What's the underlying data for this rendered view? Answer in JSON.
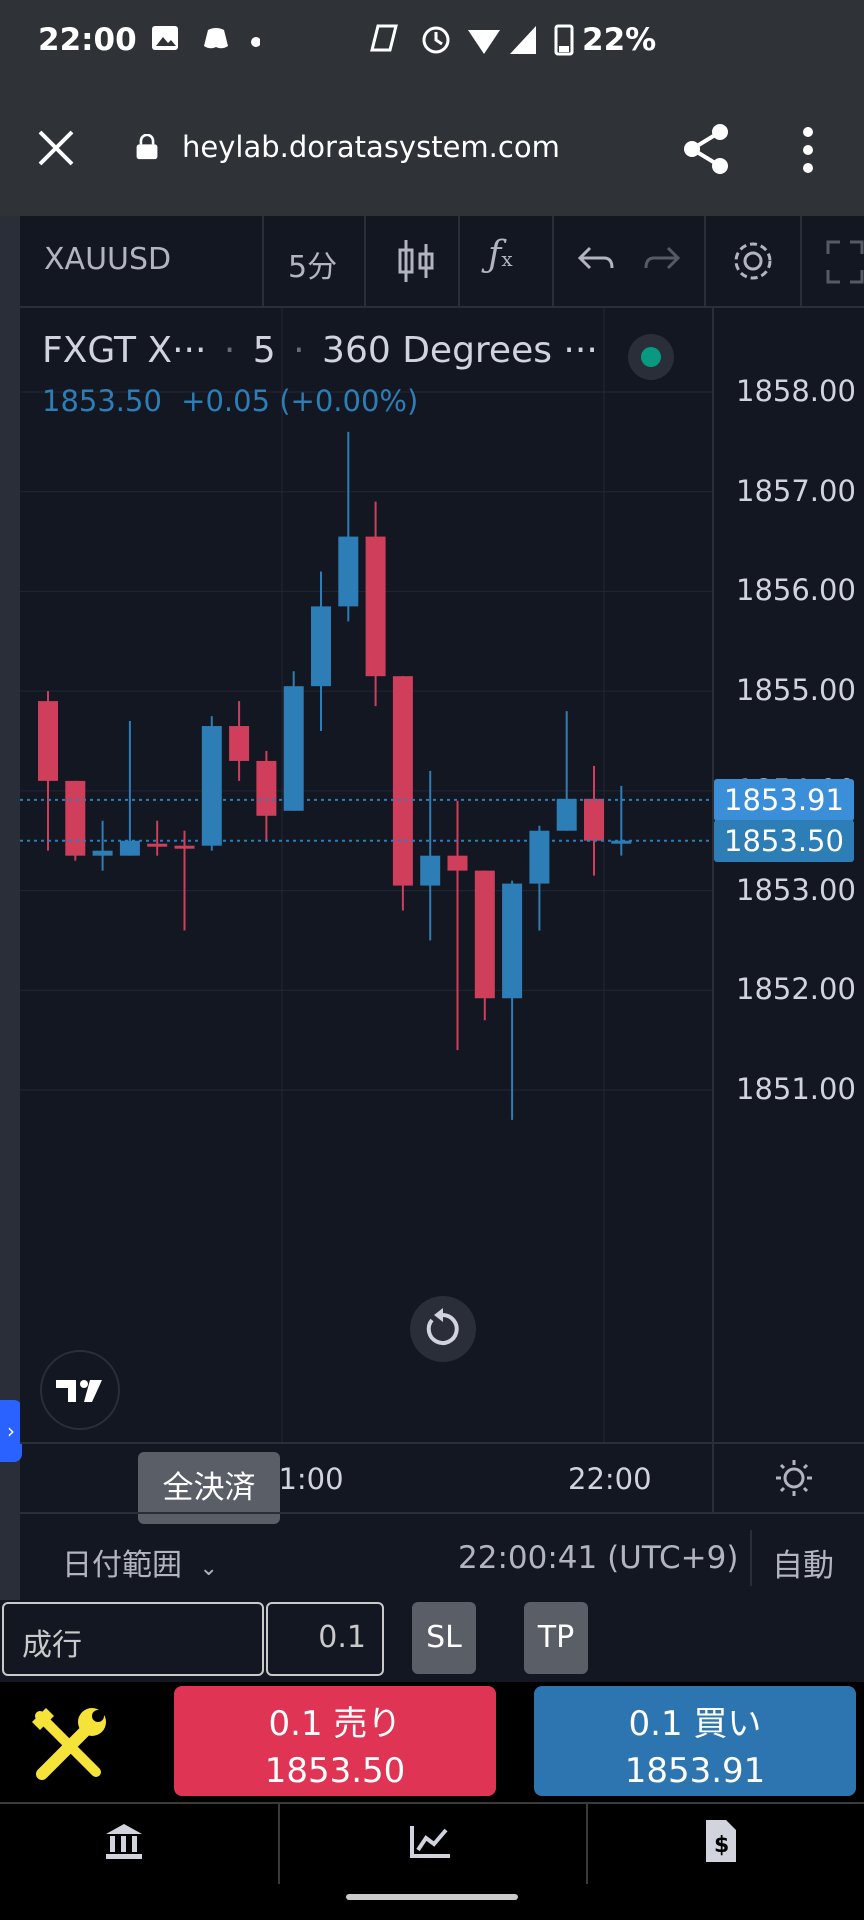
{
  "status_bar": {
    "time": "22:00",
    "battery": "22%"
  },
  "browser": {
    "url": "heylab.doratasystem.com"
  },
  "toolbar": {
    "symbol": "XAUUSD",
    "timeframe": "5分"
  },
  "legend": {
    "symbol_short": "FXGT X···",
    "interval": "5",
    "indicator": "360 Degrees ···",
    "last_price": "1853.50",
    "change": "+0.05 (+0.00%)"
  },
  "price_axis": {
    "labels": [
      "1858.00",
      "1857.00",
      "1856.00",
      "1855.00",
      "1853.00",
      "1852.00",
      "1851.00"
    ],
    "ask_label": "1853.91",
    "bid_label": "1853.50",
    "hidden_label": "1854.00"
  },
  "time_axis": {
    "labels": [
      "21:00",
      "22:00"
    ]
  },
  "tooltip": {
    "text": "全決済"
  },
  "date_bar": {
    "range_label": "日付範囲",
    "clock": "22:00:41 (UTC+9)",
    "auto_label": "自動"
  },
  "order_row": {
    "order_type": "成行",
    "quantity": "0.1",
    "sl_label": "SL",
    "tp_label": "TP"
  },
  "trade": {
    "sell_label": "0.1 売り",
    "sell_price": "1853.50",
    "buy_label": "0.1 買い",
    "buy_price": "1853.91",
    "sell_color": "#e03454",
    "buy_color": "#2d75b0"
  },
  "chart_data": {
    "type": "candlestick",
    "ylim": [
      1850.2,
      1858.4
    ],
    "up_color": "#2d7db6",
    "down_color": "#cf3f5b",
    "ask_line": 1853.91,
    "bid_line": 1853.5,
    "candles": [
      {
        "o": 1854.9,
        "h": 1855.0,
        "l": 1853.4,
        "c": 1854.1
      },
      {
        "o": 1854.1,
        "h": 1854.1,
        "l": 1853.3,
        "c": 1853.35
      },
      {
        "o": 1853.35,
        "h": 1853.7,
        "l": 1853.2,
        "c": 1853.4
      },
      {
        "o": 1853.35,
        "h": 1854.7,
        "l": 1853.35,
        "c": 1853.5
      },
      {
        "o": 1853.47,
        "h": 1853.7,
        "l": 1853.35,
        "c": 1853.45
      },
      {
        "o": 1853.45,
        "h": 1853.6,
        "l": 1852.6,
        "c": 1853.42
      },
      {
        "o": 1853.45,
        "h": 1854.75,
        "l": 1853.4,
        "c": 1854.65
      },
      {
        "o": 1854.65,
        "h": 1854.9,
        "l": 1854.1,
        "c": 1854.3
      },
      {
        "o": 1854.3,
        "h": 1854.4,
        "l": 1853.5,
        "c": 1853.75
      },
      {
        "o": 1853.8,
        "h": 1855.2,
        "l": 1853.8,
        "c": 1855.05
      },
      {
        "o": 1855.05,
        "h": 1856.2,
        "l": 1854.6,
        "c": 1855.85
      },
      {
        "o": 1855.85,
        "h": 1857.6,
        "l": 1855.7,
        "c": 1856.55
      },
      {
        "o": 1856.55,
        "h": 1856.9,
        "l": 1854.85,
        "c": 1855.15
      },
      {
        "o": 1855.15,
        "h": 1855.1,
        "l": 1852.8,
        "c": 1853.05
      },
      {
        "o": 1853.05,
        "h": 1854.2,
        "l": 1852.5,
        "c": 1853.35
      },
      {
        "o": 1853.35,
        "h": 1853.9,
        "l": 1851.4,
        "c": 1853.2
      },
      {
        "o": 1853.2,
        "h": 1853.2,
        "l": 1851.7,
        "c": 1851.92
      },
      {
        "o": 1851.92,
        "h": 1853.1,
        "l": 1850.7,
        "c": 1853.07
      },
      {
        "o": 1853.07,
        "h": 1853.65,
        "l": 1852.6,
        "c": 1853.6
      },
      {
        "o": 1853.6,
        "h": 1854.8,
        "l": 1853.6,
        "c": 1853.92
      },
      {
        "o": 1853.92,
        "h": 1854.25,
        "l": 1853.15,
        "c": 1853.5
      },
      {
        "o": 1853.5,
        "h": 1854.05,
        "l": 1853.35,
        "c": 1853.5
      }
    ]
  }
}
